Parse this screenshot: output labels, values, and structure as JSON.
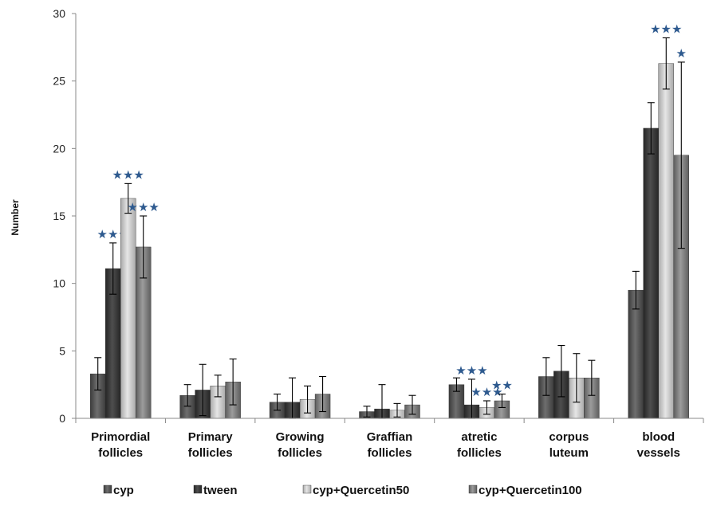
{
  "chart_data": {
    "type": "bar",
    "ylabel": "Number",
    "ylim": [
      0,
      30
    ],
    "yticks": [
      0,
      5,
      10,
      15,
      20,
      25,
      30
    ],
    "categories": [
      [
        "Primordial",
        "follicles"
      ],
      [
        "Primary",
        "follicles"
      ],
      [
        "Growing",
        "follicles"
      ],
      [
        "Graffian",
        "follicles"
      ],
      [
        "atretic",
        "follicles"
      ],
      [
        "corpus",
        "luteum"
      ],
      [
        "blood",
        "vessels"
      ]
    ],
    "series": [
      {
        "name": "cyp",
        "color": "#5c5c5c",
        "values": [
          3.3,
          1.7,
          1.2,
          0.5,
          2.5,
          3.1,
          9.5
        ],
        "errors": [
          1.2,
          0.8,
          0.6,
          0.4,
          0.5,
          1.4,
          1.4
        ],
        "significance": [
          "",
          "",
          "",
          "",
          "",
          "",
          ""
        ]
      },
      {
        "name": "tween",
        "color": "#3e3e3e",
        "values": [
          11.1,
          2.1,
          1.2,
          0.7,
          1.0,
          3.5,
          21.5
        ],
        "errors": [
          1.9,
          1.9,
          1.8,
          1.8,
          1.9,
          1.9,
          1.9
        ],
        "significance": [
          "★★★",
          "",
          "",
          "",
          "★★★",
          "",
          ""
        ]
      },
      {
        "name": "cyp+Quercetin50",
        "color": "#c8c8c8",
        "values": [
          16.3,
          2.4,
          1.4,
          0.6,
          0.8,
          3.0,
          26.3
        ],
        "errors": [
          1.1,
          0.8,
          1.0,
          0.5,
          0.5,
          1.8,
          1.9
        ],
        "significance": [
          "★★★",
          "",
          "",
          "",
          "★★★",
          "",
          "★★★"
        ]
      },
      {
        "name": "cyp+Quercetin100",
        "color": "#868686",
        "values": [
          12.7,
          2.7,
          1.8,
          1.0,
          1.3,
          3.0,
          19.5
        ],
        "errors": [
          2.3,
          1.7,
          1.3,
          0.7,
          0.5,
          1.3,
          6.9
        ],
        "significance": [
          "★★★",
          "",
          "",
          "",
          "★★",
          "",
          "★"
        ]
      }
    ],
    "legend_position": "bottom",
    "grid": false
  }
}
